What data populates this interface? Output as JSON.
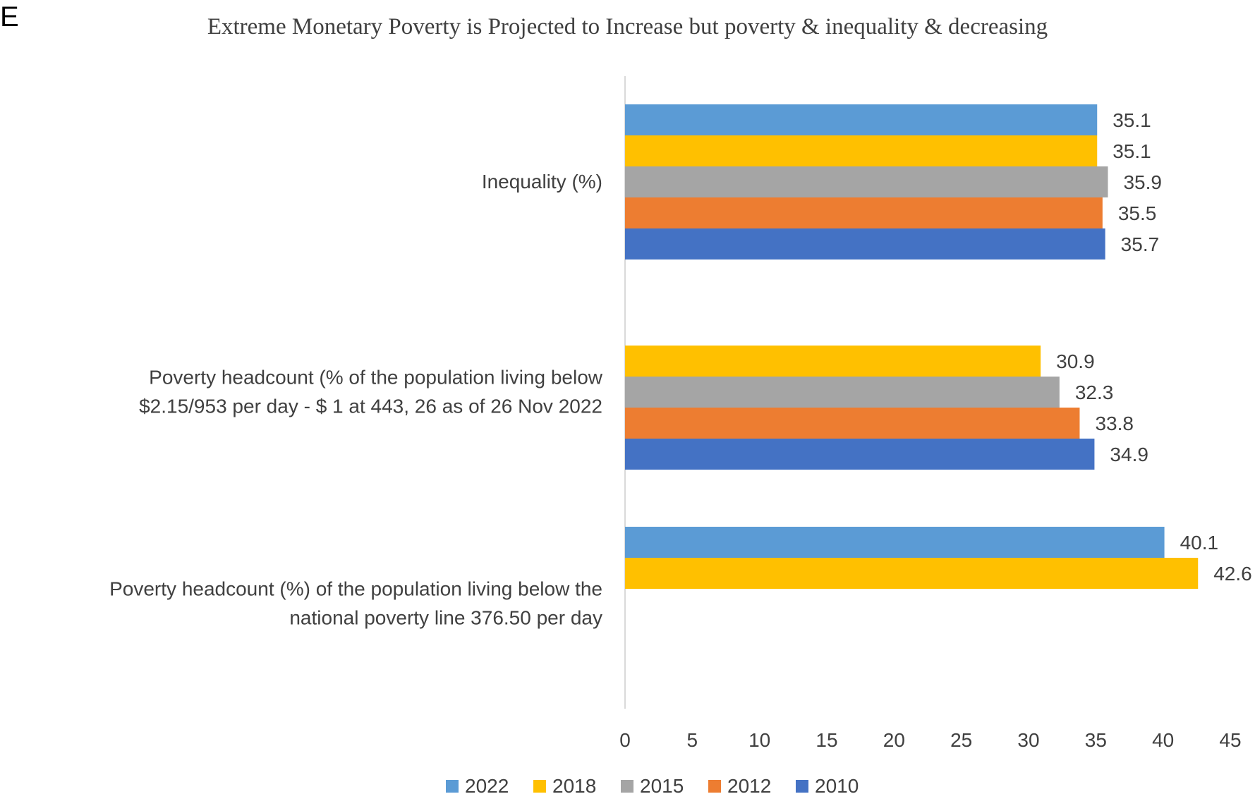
{
  "panel_label": "E",
  "chart_data": {
    "type": "bar",
    "orientation": "horizontal",
    "title": "Extreme Monetary Poverty is Projected to Increase but poverty & inequality & decreasing",
    "categories": [
      "Inequality (%)",
      "Poverty headcount (% of the population living below $2.15/953 per day - $ 1 at 443, 26 as of 26 Nov 2022",
      "Poverty headcount (%) of the population living below the national poverty line 376.50 per day"
    ],
    "category_lines": [
      [
        "Inequality (%)"
      ],
      [
        "Poverty headcount (% of the population living below",
        "$2.15/953 per day - $ 1 at 443, 26 as of 26 Nov 2022"
      ],
      [
        "Poverty headcount (%) of the population living below the",
        "national poverty line 376.50 per day"
      ]
    ],
    "series": [
      {
        "name": "2022",
        "color": "#5B9BD5",
        "values": [
          35.1,
          null,
          40.1
        ]
      },
      {
        "name": "2018",
        "color": "#FFC000",
        "values": [
          35.1,
          30.9,
          42.6
        ]
      },
      {
        "name": "2015",
        "color": "#A5A5A5",
        "values": [
          35.9,
          32.3,
          null
        ]
      },
      {
        "name": "2012",
        "color": "#ED7D31",
        "values": [
          35.5,
          33.8,
          null
        ]
      },
      {
        "name": "2010",
        "color": "#4472C4",
        "values": [
          35.7,
          34.9,
          null
        ]
      }
    ],
    "xlim": [
      0,
      45
    ],
    "xticks": [
      0,
      5,
      10,
      15,
      20,
      25,
      30,
      35,
      40,
      45
    ],
    "grid": false,
    "legend_position": "bottom"
  }
}
